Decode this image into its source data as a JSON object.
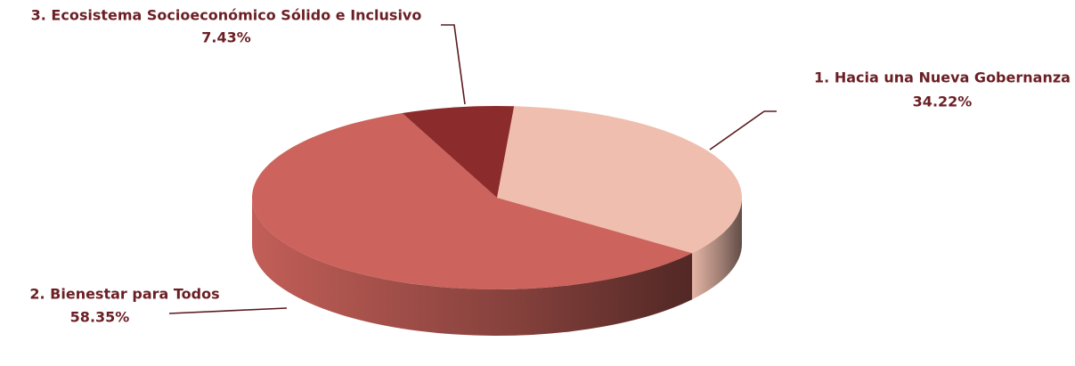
{
  "chart_data": {
    "type": "pie",
    "categories": [
      "1. Hacia una Nueva Gobernanza",
      "2. Bienestar para Todos",
      "3. Ecosistema Socioeconómico Sólido e Inclusivo"
    ],
    "values": [
      34.22,
      58.35,
      7.43
    ],
    "value_labels": [
      "34.22%",
      "58.35%",
      "7.43%"
    ],
    "colors": [
      "#f0beae",
      "#cc635c",
      "#8c2b2b"
    ]
  }
}
